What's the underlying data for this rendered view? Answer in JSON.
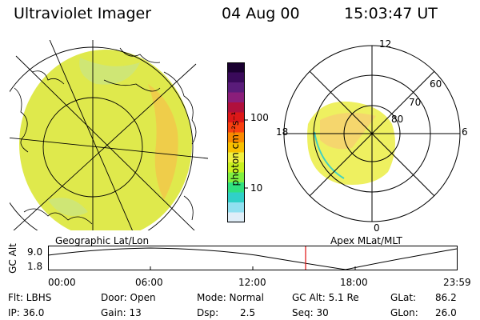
{
  "header": {
    "instrument": "Ultraviolet Imager",
    "date": "04 Aug 00",
    "time": "15:03:47 UT"
  },
  "colorbar": {
    "unit_label": "photon cm⁻²s⁻¹",
    "ticks": [
      "100",
      "10"
    ],
    "colors": [
      "#1a0030",
      "#3a0a5a",
      "#5a1c7a",
      "#8a1e7a",
      "#b0103c",
      "#dc1818",
      "#f84010",
      "#fa8a00",
      "#f8c000",
      "#f0f040",
      "#c8f020",
      "#80f040",
      "#30e080",
      "#30d0c8",
      "#90e0f0",
      "#e0eef8"
    ]
  },
  "geo_map": {
    "label": "Geographic Lat/Lon",
    "land_color": "#cfe86a",
    "emission_color": "#e4ec4e",
    "highlight_color": "#f3b838"
  },
  "polar_plot": {
    "label": "Apex MLat/MLT",
    "mlt_labels": [
      "12",
      "6",
      "18",
      "0"
    ],
    "lat_labels": [
      "60",
      "70",
      "80"
    ]
  },
  "timeline": {
    "y_axis_title": "GC Alt",
    "y_ticks": [
      "9.0",
      "1.8"
    ],
    "x_ticks": [
      "00:00",
      "06:00",
      "12:00",
      "18:00",
      "23:59"
    ],
    "marker_color": "#e01010"
  },
  "status": {
    "filter": "Flt: LBHS",
    "door": "Door: Open",
    "mode": "Mode: Normal",
    "gc_alt": "GC Alt: 5.1 Re",
    "glat_label": "GLat:",
    "glat_value": "86.2",
    "ip": "IP: 36.0",
    "gain": "Gain: 13",
    "dsp_label": "Dsp:",
    "dsp_value": "2.5",
    "seq": "Seq: 30",
    "glon_label": "GLon:",
    "glon_value": "26.0"
  }
}
